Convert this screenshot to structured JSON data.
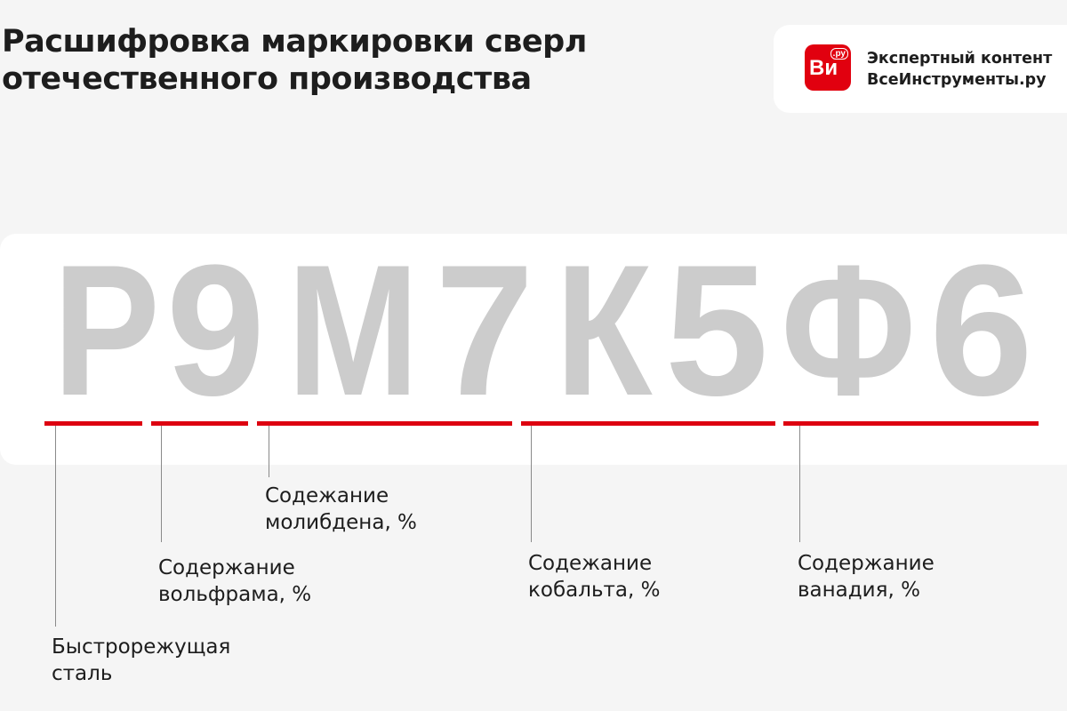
{
  "title": {
    "line1": "Расшифровка маркировки сверл",
    "line2": "отечественного производства"
  },
  "brand": {
    "logo_text": "Ви",
    "logo_badge": ".ру",
    "line1": "Экспертный контент",
    "line2": "ВсеИнструменты.ру",
    "color": "#e1000f"
  },
  "marking": {
    "letters": [
      "Р",
      "9",
      "М",
      "7",
      "К",
      "5",
      "Ф",
      "6"
    ]
  },
  "accent_color": "#dd0010",
  "labels": [
    {
      "line1": "Быстрорежущая",
      "line2": "сталь"
    },
    {
      "line1": "Содержание",
      "line2": "вольфрама, %"
    },
    {
      "line1": "Содежание",
      "line2": "молибдена, %"
    },
    {
      "line1": "Содежание",
      "line2": "кобальта, %"
    },
    {
      "line1": "Содержание",
      "line2": "ванадия, %"
    }
  ]
}
